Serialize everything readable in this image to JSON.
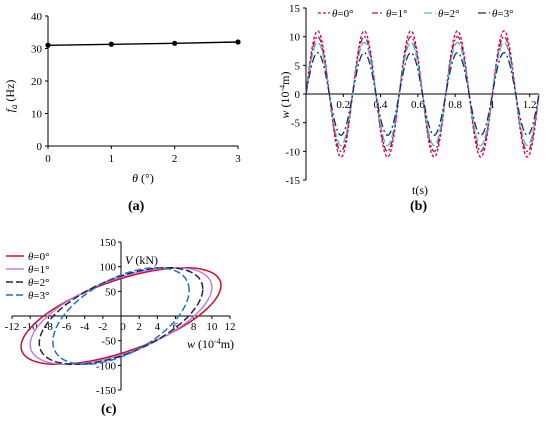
{
  "panels": {
    "a": {
      "label": "a"
    },
    "b": {
      "label": "b"
    },
    "c": {
      "label": "c"
    }
  },
  "chart_data": [
    {
      "id": "a",
      "type": "line",
      "xlabel": "θ (°)",
      "ylabel": "fₐ (Hz)",
      "ylabel_main": "f",
      "ylabel_sub": "a",
      "ylabel_unit": " (Hz)",
      "xlabel_sym": "θ",
      "xlabel_unit": " (°)",
      "xlim": [
        0,
        3
      ],
      "ylim": [
        0,
        40
      ],
      "xticks": [
        0,
        1,
        2,
        3
      ],
      "yticks": [
        0,
        10,
        20,
        30,
        40
      ],
      "grid": false,
      "series": [
        {
          "x": [
            0,
            1,
            2,
            3
          ],
          "y": [
            31.0,
            31.3,
            31.6,
            32.0
          ],
          "color": "#000000",
          "marker": "dot"
        }
      ]
    },
    {
      "id": "b",
      "type": "line",
      "xlabel": "t(s)",
      "ylabel": "w (10⁻⁴m)",
      "ylabel_sym": "w",
      "ylabel_unit": " (10",
      "ylabel_exp": "-4",
      "ylabel_tail": "m)",
      "xlim": [
        0,
        1.25
      ],
      "ylim": [
        -15,
        15
      ],
      "xticks": [
        0.2,
        0.4,
        0.6,
        0.8,
        1.0,
        1.2
      ],
      "xtick_labels": [
        "0.2",
        "0.4",
        "0.6",
        "0.8",
        "1",
        "1.2"
      ],
      "yticks": [
        -15,
        -10,
        -5,
        0,
        5,
        10,
        15
      ],
      "legend_position": "top",
      "series": [
        {
          "name": "θ=0°",
          "amplitude": 11.0,
          "period": 0.25,
          "color": "#d6005c",
          "dash": "3,2"
        },
        {
          "name": "θ=1°",
          "amplitude": 10.0,
          "period": 0.25,
          "color": "#b01040",
          "dash": "6,2,2,2"
        },
        {
          "name": "θ=2°",
          "amplitude": 9.0,
          "period": 0.25,
          "color": "#4fb7c9",
          "dash": "8,3"
        },
        {
          "name": "θ=3°",
          "amplitude": 7.2,
          "period": 0.25,
          "color": "#1a2a6e",
          "dash": "8,3,2,3"
        }
      ]
    },
    {
      "id": "c",
      "type": "line",
      "xlabel": "w (10⁻⁴m)",
      "xlabel_sym": "w",
      "xlabel_unit": " (10",
      "xlabel_exp": "-4",
      "xlabel_tail": "m)",
      "ylabel": "V (kN)",
      "ylabel_sym": "V",
      "ylabel_unit": " (kN)",
      "xlim": [
        -12,
        12
      ],
      "ylim": [
        -150,
        150
      ],
      "xticks": [
        -12,
        -10,
        -8,
        -6,
        -4,
        -2,
        0,
        2,
        4,
        6,
        8,
        10,
        12
      ],
      "yticks": [
        -150,
        -100,
        -50,
        0,
        50,
        100,
        150
      ],
      "legend_position": "top-left",
      "series": [
        {
          "name": "θ=0°",
          "wmax": 11.0,
          "vmax": 98,
          "zero": 62,
          "color": "#c8102e",
          "dash": ""
        },
        {
          "name": "θ=1°",
          "wmax": 10.0,
          "vmax": 98,
          "zero": 58,
          "color": "#c080e0",
          "dash": ""
        },
        {
          "name": "θ=2°",
          "wmax": 9.0,
          "vmax": 98,
          "zero": 55,
          "color": "#222244",
          "dash": "7,3"
        },
        {
          "name": "θ=3°",
          "wmax": 7.5,
          "vmax": 98,
          "zero": 52,
          "color": "#1e6fd0",
          "dash": "7,3"
        }
      ]
    }
  ]
}
